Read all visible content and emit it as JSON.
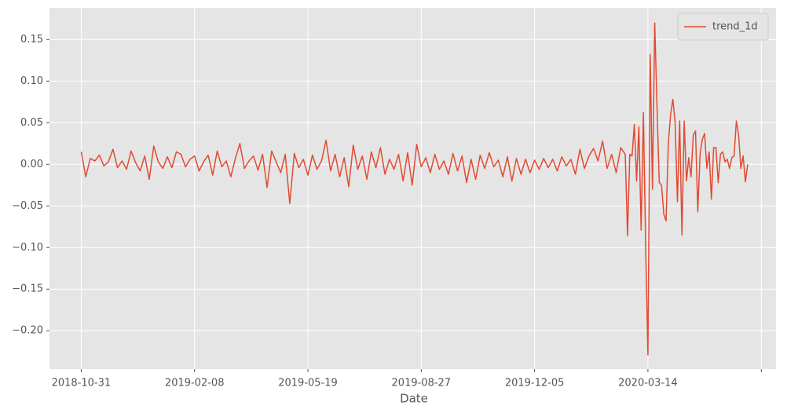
{
  "chart_data": {
    "type": "line",
    "xlabel": "Date",
    "legend": "upper right",
    "grid": true,
    "xlim": [
      "2018-10-03",
      "2020-07-05"
    ],
    "ylim": [
      -0.246,
      0.188
    ],
    "xticks": [
      "2018-10-31",
      "2019-02-08",
      "2019-05-19",
      "2019-08-27",
      "2019-12-05",
      "2020-03-14",
      {
        "value": "2020-06-22",
        "label": null
      }
    ],
    "yticks": [
      0.15,
      {
        "value": 0.1,
        "label": "0.10"
      },
      {
        "value": 0.05,
        "label": "0.05"
      },
      {
        "value": 0,
        "label": "0.00"
      },
      {
        "value": -0.05,
        "label": "−0.05"
      },
      {
        "value": -0.1,
        "label": "−0.10"
      },
      {
        "value": -0.15,
        "label": "−0.15"
      },
      {
        "value": -0.2,
        "label": "−0.20"
      }
    ],
    "x": [
      "2018-10-31",
      "2018-11-04",
      "2018-11-08",
      "2018-11-12",
      "2018-11-16",
      "2018-11-20",
      "2018-11-24",
      "2018-11-28",
      "2018-12-02",
      "2018-12-06",
      "2018-12-10",
      "2018-12-14",
      "2018-12-18",
      "2018-12-22",
      "2018-12-26",
      "2018-12-30",
      "2019-01-03",
      "2019-01-07",
      "2019-01-11",
      "2019-01-15",
      "2019-01-19",
      "2019-01-23",
      "2019-01-27",
      "2019-01-31",
      "2019-02-04",
      "2019-02-08",
      "2019-02-12",
      "2019-02-16",
      "2019-02-20",
      "2019-02-24",
      "2019-02-28",
      "2019-03-04",
      "2019-03-08",
      "2019-03-12",
      "2019-03-16",
      "2019-03-20",
      "2019-03-24",
      "2019-03-28",
      "2019-04-01",
      "2019-04-05",
      "2019-04-09",
      "2019-04-13",
      "2019-04-17",
      "2019-04-21",
      "2019-04-25",
      "2019-04-29",
      "2019-05-03",
      "2019-05-07",
      "2019-05-11",
      "2019-05-15",
      "2019-05-19",
      "2019-05-23",
      "2019-05-27",
      "2019-05-31",
      "2019-06-04",
      "2019-06-08",
      "2019-06-12",
      "2019-06-16",
      "2019-06-20",
      "2019-06-24",
      "2019-06-28",
      "2019-07-02",
      "2019-07-06",
      "2019-07-10",
      "2019-07-14",
      "2019-07-18",
      "2019-07-22",
      "2019-07-26",
      "2019-07-30",
      "2019-08-03",
      "2019-08-07",
      "2019-08-11",
      "2019-08-15",
      "2019-08-19",
      "2019-08-23",
      "2019-08-27",
      "2019-08-31",
      "2019-09-04",
      "2019-09-08",
      "2019-09-12",
      "2019-09-16",
      "2019-09-20",
      "2019-09-24",
      "2019-09-28",
      "2019-10-02",
      "2019-10-06",
      "2019-10-10",
      "2019-10-14",
      "2019-10-18",
      "2019-10-22",
      "2019-10-26",
      "2019-10-30",
      "2019-11-03",
      "2019-11-07",
      "2019-11-11",
      "2019-11-15",
      "2019-11-19",
      "2019-11-23",
      "2019-11-27",
      "2019-12-01",
      "2019-12-05",
      "2019-12-09",
      "2019-12-13",
      "2019-12-17",
      "2019-12-21",
      "2019-12-25",
      "2019-12-29",
      "2020-01-02",
      "2020-01-06",
      "2020-01-10",
      "2020-01-14",
      "2020-01-18",
      "2020-01-22",
      "2020-01-26",
      "2020-01-30",
      "2020-02-03",
      "2020-02-07",
      "2020-02-11",
      "2020-02-15",
      "2020-02-19",
      "2020-02-23",
      "2020-02-25",
      "2020-02-27",
      "2020-02-29",
      "2020-03-02",
      "2020-03-04",
      "2020-03-06",
      "2020-03-08",
      "2020-03-10",
      "2020-03-12",
      "2020-03-14",
      "2020-03-16",
      "2020-03-18",
      "2020-03-20",
      "2020-03-22",
      "2020-03-24",
      "2020-03-26",
      "2020-03-28",
      "2020-03-30",
      "2020-04-01",
      "2020-04-03",
      "2020-04-05",
      "2020-04-07",
      "2020-04-09",
      "2020-04-11",
      "2020-04-13",
      "2020-04-15",
      "2020-04-17",
      "2020-04-19",
      "2020-04-21",
      "2020-04-23",
      "2020-04-25",
      "2020-04-27",
      "2020-04-29",
      "2020-05-01",
      "2020-05-03",
      "2020-05-05",
      "2020-05-07",
      "2020-05-09",
      "2020-05-11",
      "2020-05-13",
      "2020-05-15",
      "2020-05-17",
      "2020-05-19",
      "2020-05-21",
      "2020-05-23",
      "2020-05-25",
      "2020-05-27",
      "2020-05-29",
      "2020-05-31",
      "2020-06-02",
      "2020-06-04",
      "2020-06-06",
      "2020-06-08",
      "2020-06-10"
    ],
    "series": [
      {
        "name": "trend_1d",
        "color": "#e24a33",
        "values": [
          0.015,
          -0.015,
          0.007,
          0.004,
          0.011,
          -0.002,
          0.003,
          0.018,
          -0.004,
          0.004,
          -0.006,
          0.016,
          0.002,
          -0.008,
          0.01,
          -0.018,
          0.022,
          0.003,
          -0.005,
          0.009,
          -0.004,
          0.015,
          0.012,
          -0.003,
          0.006,
          0.01,
          -0.008,
          0.003,
          0.011,
          -0.013,
          0.016,
          -0.003,
          0.004,
          -0.015,
          0.007,
          0.025,
          -0.005,
          0.004,
          0.01,
          -0.007,
          0.012,
          -0.028,
          0.016,
          0.003,
          -0.01,
          0.012,
          -0.047,
          0.013,
          -0.004,
          0.006,
          -0.013,
          0.011,
          -0.006,
          0.004,
          0.029,
          -0.008,
          0.012,
          -0.015,
          0.008,
          -0.027,
          0.023,
          -0.006,
          0.01,
          -0.018,
          0.015,
          -0.004,
          0.02,
          -0.012,
          0.006,
          -0.006,
          0.012,
          -0.02,
          0.014,
          -0.025,
          0.024,
          -0.003,
          0.008,
          -0.01,
          0.012,
          -0.006,
          0.004,
          -0.012,
          0.013,
          -0.008,
          0.01,
          -0.022,
          0.006,
          -0.018,
          0.011,
          -0.005,
          0.014,
          -0.003,
          0.005,
          -0.015,
          0.009,
          -0.02,
          0.007,
          -0.012,
          0.006,
          -0.01,
          0.005,
          -0.006,
          0.007,
          -0.004,
          0.006,
          -0.008,
          0.009,
          -0.002,
          0.006,
          -0.012,
          0.018,
          -0.005,
          0.01,
          0.019,
          0.004,
          0.028,
          -0.005,
          0.012,
          -0.01,
          0.02,
          0.012,
          -0.086,
          0.012,
          0.01,
          0.048,
          -0.02,
          0.045,
          -0.079,
          0.062,
          -0.1,
          -0.229,
          0.132,
          -0.03,
          0.17,
          0.07,
          -0.022,
          -0.025,
          -0.06,
          -0.068,
          0.025,
          0.06,
          0.078,
          0.05,
          -0.045,
          0.052,
          -0.085,
          0.052,
          -0.02,
          0.008,
          -0.015,
          0.035,
          0.04,
          -0.057,
          0.012,
          0.03,
          0.037,
          -0.005,
          0.015,
          -0.042,
          0.02,
          0.02,
          -0.022,
          0.012,
          0.015,
          0.003,
          0.006,
          -0.005,
          0.008,
          0.01,
          0.052,
          0.035,
          -0.005,
          0.01,
          -0.021,
          0.0
        ]
      }
    ]
  }
}
